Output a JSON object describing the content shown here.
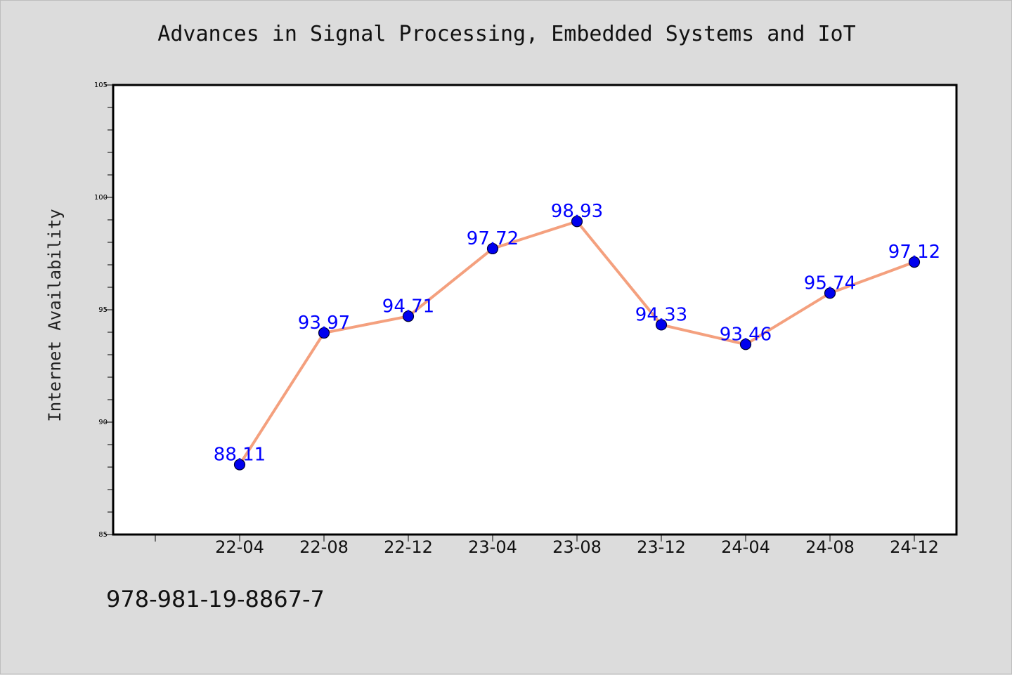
{
  "title": "Advances in Signal Processing, Embedded Systems and IoT",
  "footer": {
    "isbn": "978-981-19-8867-7"
  },
  "colors": {
    "line": "#f4a07e",
    "marker": "#0000ee",
    "label": "#0000ff",
    "plot_bg": "#ffffff",
    "page_bg": "#dcdcdc"
  },
  "chart_data": {
    "type": "line",
    "title": "Advances in Signal Processing, Embedded Systems and IoT",
    "xlabel": "",
    "ylabel": "Internet Availability",
    "x": [
      "22-04",
      "22-08",
      "22-12",
      "23-04",
      "23-08",
      "23-12",
      "24-04",
      "24-08",
      "24-12"
    ],
    "values": [
      88.11,
      93.97,
      94.71,
      97.72,
      98.93,
      94.33,
      93.46,
      95.74,
      97.12
    ],
    "data_labels": [
      "88.11",
      "93.97",
      "94.71",
      "97.72",
      "98.93",
      "94.33",
      "93.46",
      "95.74",
      "97.12"
    ],
    "ylim": [
      85,
      105
    ],
    "yticks": [
      85,
      90,
      95,
      100,
      105
    ],
    "grid": false,
    "legend": "none"
  }
}
